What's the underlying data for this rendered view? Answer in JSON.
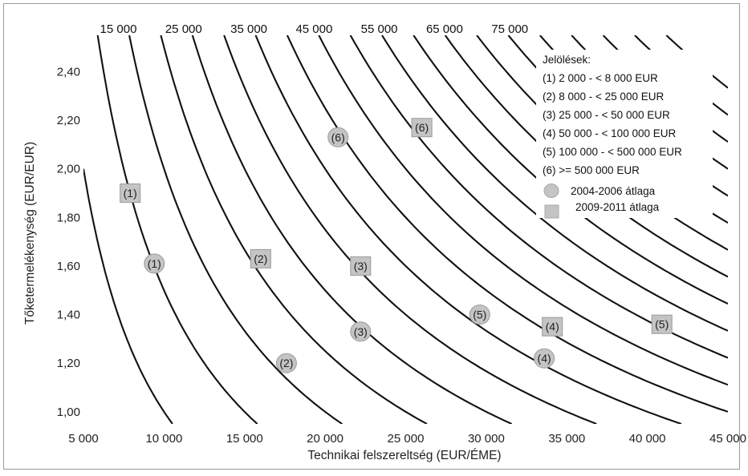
{
  "chart_data": {
    "type": "scatter",
    "xlabel": "Technikai felszereltség (EUR/ÉME)",
    "ylabel": "Tőketermelékenység (EUR/EUR)",
    "xlim": [
      5000,
      45000
    ],
    "ylim": [
      0.95,
      2.55
    ],
    "x_ticks": [
      {
        "value": 5000,
        "label": "5 000"
      },
      {
        "value": 10000,
        "label": "10 000"
      },
      {
        "value": 15000,
        "label": "15 000"
      },
      {
        "value": 20000,
        "label": "20 000"
      },
      {
        "value": 25000,
        "label": "25 000"
      },
      {
        "value": 30000,
        "label": "30 000"
      },
      {
        "value": 35000,
        "label": "35 000"
      },
      {
        "value": 40000,
        "label": "40 000"
      },
      {
        "value": 45000,
        "label": "45 000"
      }
    ],
    "y_ticks": [
      {
        "value": 1.0,
        "label": "1,00"
      },
      {
        "value": 1.2,
        "label": "1,20"
      },
      {
        "value": 1.4,
        "label": "1,40"
      },
      {
        "value": 1.6,
        "label": "1,60"
      },
      {
        "value": 1.8,
        "label": "1,80"
      },
      {
        "value": 2.0,
        "label": "2,00"
      },
      {
        "value": 2.2,
        "label": "2,20"
      },
      {
        "value": 2.4,
        "label": "2,40"
      }
    ],
    "isoquant_values": [
      10000,
      15000,
      20000,
      25000,
      30000,
      35000,
      40000,
      45000,
      50000,
      55000,
      60000,
      65000,
      70000,
      75000,
      80000,
      85000,
      90000,
      95000,
      100000,
      105000
    ],
    "isoquant_labels": [
      {
        "value": 15000,
        "label": "15 000"
      },
      {
        "value": 25000,
        "label": "25 000"
      },
      {
        "value": 35000,
        "label": "35 000"
      },
      {
        "value": 45000,
        "label": "45 000"
      },
      {
        "value": 55000,
        "label": "55 000"
      },
      {
        "value": 65000,
        "label": "65 000"
      },
      {
        "value": 75000,
        "label": "75 000"
      }
    ],
    "grid": false,
    "legend": {
      "placement": "top-right",
      "title": "Jelölések:",
      "entries": [
        "(1) 2 000 - < 8 000 EUR",
        "(2) 8 000 - < 25 000 EUR",
        "(3) 25 000 - < 50 000 EUR",
        "(4) 50 000 - < 100 000 EUR",
        "(5) 100 000 - < 500 000 EUR",
        "(6) >= 500 000 EUR"
      ],
      "markers": [
        {
          "shape": "circle",
          "label": "2004-2006 átlaga"
        },
        {
          "shape": "square",
          "label": "2009-2011 átlaga"
        }
      ]
    },
    "series": [
      {
        "name": "2004-2006 átlaga",
        "marker": "circle",
        "points": [
          {
            "label": "(1)",
            "x": 9400,
            "y": 1.61
          },
          {
            "label": "(2)",
            "x": 17600,
            "y": 1.2
          },
          {
            "label": "(3)",
            "x": 22200,
            "y": 1.33
          },
          {
            "label": "(4)",
            "x": 33600,
            "y": 1.22
          },
          {
            "label": "(5)",
            "x": 29600,
            "y": 1.4
          },
          {
            "label": "(6)",
            "x": 20800,
            "y": 2.13
          }
        ]
      },
      {
        "name": "2009-2011 átlaga",
        "marker": "square",
        "points": [
          {
            "label": "(1)",
            "x": 7900,
            "y": 1.9
          },
          {
            "label": "(2)",
            "x": 16000,
            "y": 1.63
          },
          {
            "label": "(3)",
            "x": 22200,
            "y": 1.6
          },
          {
            "label": "(4)",
            "x": 34100,
            "y": 1.35
          },
          {
            "label": "(5)",
            "x": 40900,
            "y": 1.36
          },
          {
            "label": "(6)",
            "x": 26000,
            "y": 2.17
          }
        ]
      }
    ],
    "colors": {
      "line": "#111111",
      "marker_fill": "#c4c4c4",
      "marker_stroke": "#9a9a9a",
      "frame": "#9a9a9a"
    }
  }
}
